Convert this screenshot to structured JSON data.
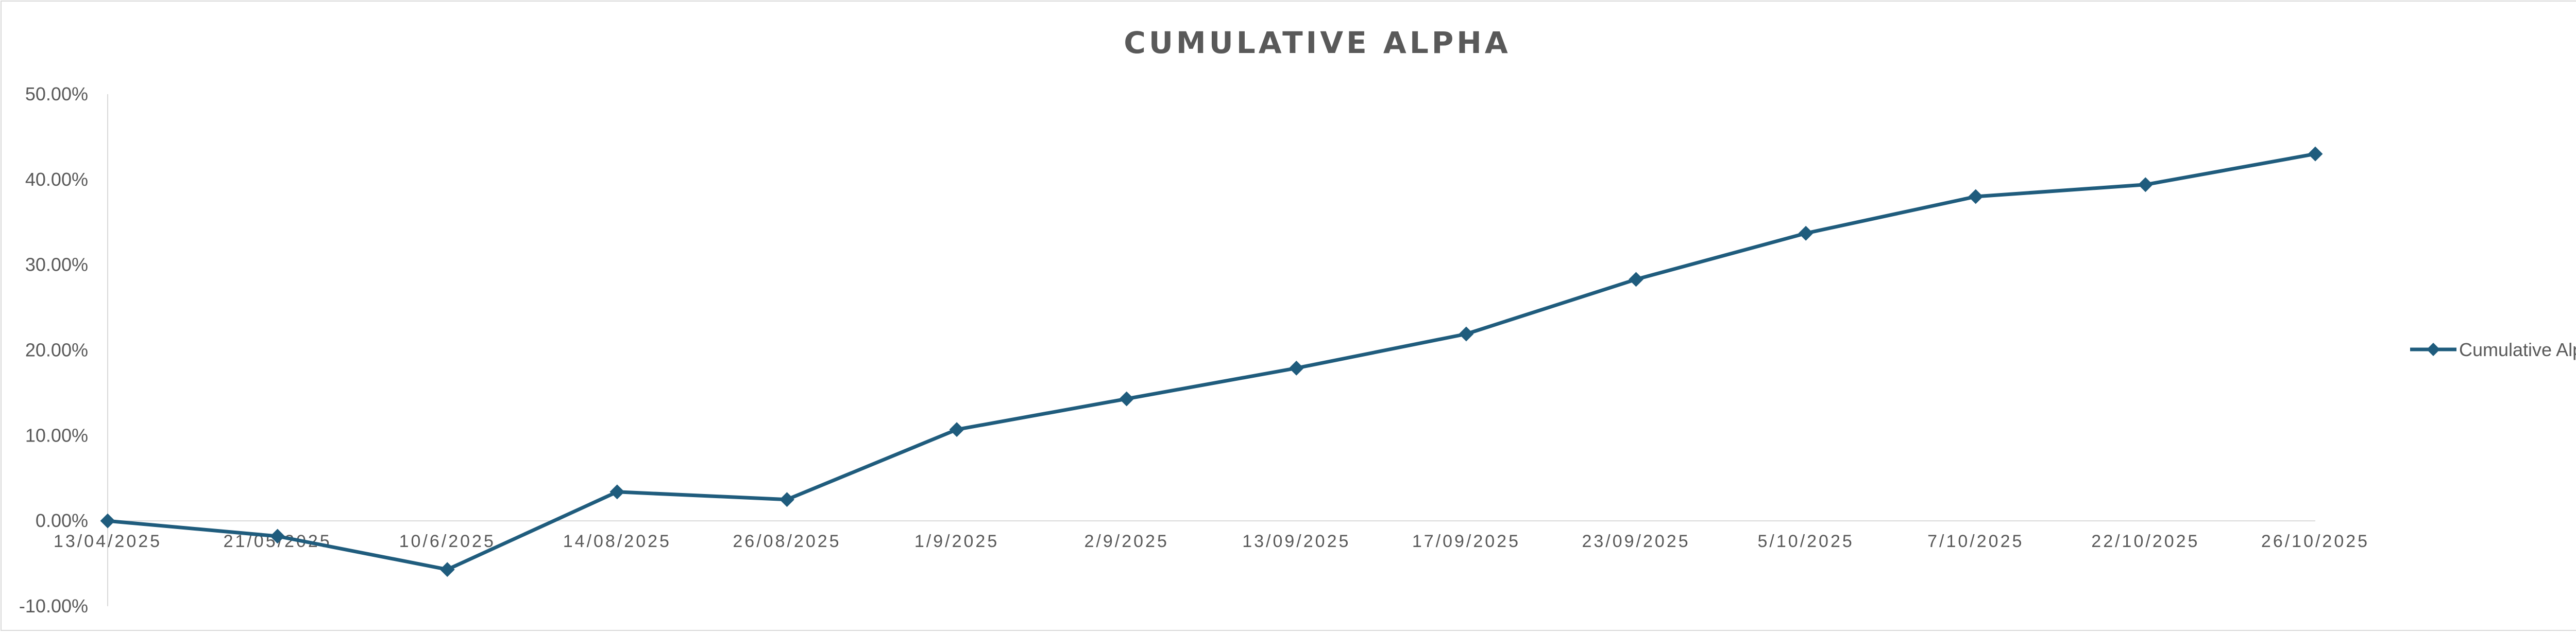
{
  "chart_data": {
    "type": "line",
    "title": "CUMULATIVE ALPHA",
    "xlabel": "",
    "ylabel": "",
    "categories": [
      "13/04/2025",
      "21/05/2025",
      "10/6/2025",
      "14/08/2025",
      "26/08/2025",
      "1/9/2025",
      "2/9/2025",
      "13/09/2025",
      "17/09/2025",
      "23/09/2025",
      "5/10/2025",
      "7/10/2025",
      "22/10/2025",
      "26/10/2025"
    ],
    "series": [
      {
        "name": "Cumulative Alpha",
        "values": [
          0.0,
          -1.8,
          -5.7,
          3.4,
          2.5,
          10.7,
          14.3,
          17.9,
          21.9,
          28.3,
          33.7,
          38.0,
          39.4,
          43.0
        ]
      }
    ],
    "ylim": [
      -10,
      50
    ],
    "yticks": [
      -10,
      0,
      10,
      20,
      30,
      40,
      50
    ],
    "ytick_labels": [
      "-10.00%",
      "0.00%",
      "10.00%",
      "20.00%",
      "30.00%",
      "40.00%",
      "50.00%"
    ],
    "grid": false,
    "legend_position": "right",
    "colors": {
      "series": "#1f5c7d",
      "axis": "#d9d9d9",
      "text": "#595959"
    },
    "marker": "diamond"
  }
}
